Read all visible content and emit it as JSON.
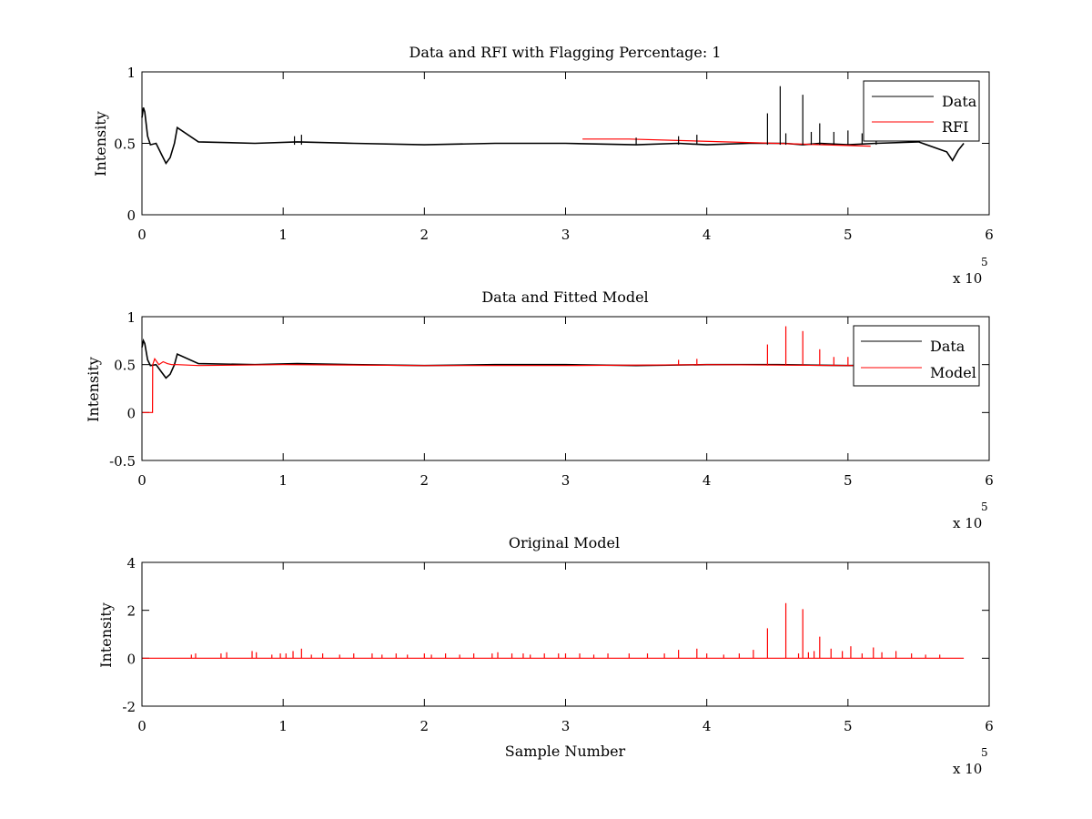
{
  "figure": {
    "background": "#ffffff"
  },
  "colors": {
    "data": "#000000",
    "red": "#ff0000",
    "axis": "#000000"
  },
  "chart_data": [
    {
      "type": "line",
      "title": "Data and RFI with Flagging Percentage: 1",
      "xlabel": "",
      "ylabel": "Intensity",
      "xlim": [
        0,
        600000
      ],
      "ylim": [
        0,
        1
      ],
      "x_ticks": [
        0,
        100000,
        200000,
        300000,
        400000,
        500000,
        600000
      ],
      "x_tick_labels": [
        "0",
        "1",
        "2",
        "3",
        "4",
        "5",
        "6"
      ],
      "y_ticks": [
        0,
        0.5,
        1
      ],
      "y_tick_labels": [
        "0",
        "0.5",
        "1"
      ],
      "x_multiplier": "x 10",
      "x_multiplier_exp": "5",
      "grid": false,
      "legend": {
        "placement": "top-right",
        "entries": [
          "Data",
          "RFI"
        ]
      },
      "series": [
        {
          "name": "Data",
          "color": "#000000",
          "x": [
            0,
            1000,
            2000,
            4000,
            6000,
            10000,
            14000,
            17000,
            20000,
            23000,
            25000,
            40000,
            80000,
            110000,
            150000,
            200000,
            250000,
            300000,
            350000,
            380000,
            400000,
            430000,
            443000,
            455000,
            468000,
            480000,
            500000,
            520000,
            550000,
            570000,
            574000,
            578000,
            582000
          ],
          "y": [
            0.68,
            0.75,
            0.72,
            0.55,
            0.49,
            0.5,
            0.42,
            0.36,
            0.4,
            0.5,
            0.61,
            0.51,
            0.5,
            0.51,
            0.5,
            0.49,
            0.5,
            0.5,
            0.49,
            0.5,
            0.49,
            0.5,
            0.5,
            0.5,
            0.49,
            0.5,
            0.49,
            0.5,
            0.51,
            0.44,
            0.38,
            0.45,
            0.5
          ]
        },
        {
          "name": "RFI",
          "color": "#ff0000",
          "x": [
            312000,
            322000,
            335000,
            345000,
            516000
          ],
          "y": [
            0.53,
            0.53,
            0.53,
            0.53,
            0.48
          ]
        }
      ],
      "spikes": {
        "x": [
          108000,
          113000,
          350000,
          380000,
          393000,
          443000,
          452000,
          456000,
          468000,
          474000,
          480000,
          490000,
          500000,
          510000,
          520000
        ],
        "y": [
          0.55,
          0.56,
          0.54,
          0.55,
          0.56,
          0.71,
          0.9,
          0.57,
          0.84,
          0.58,
          0.64,
          0.58,
          0.59,
          0.57,
          0.58
        ]
      }
    },
    {
      "type": "line",
      "title": "Data and Fitted Model",
      "xlabel": "",
      "ylabel": "Intensity",
      "xlim": [
        0,
        600000
      ],
      "ylim": [
        -0.5,
        1
      ],
      "x_ticks": [
        0,
        100000,
        200000,
        300000,
        400000,
        500000,
        600000
      ],
      "x_tick_labels": [
        "0",
        "1",
        "2",
        "3",
        "4",
        "5",
        "6"
      ],
      "y_ticks": [
        -0.5,
        0,
        0.5,
        1
      ],
      "y_tick_labels": [
        "-0.5",
        "0",
        "0.5",
        "1"
      ],
      "x_multiplier": "x 10",
      "x_multiplier_exp": "5",
      "grid": false,
      "legend": {
        "placement": "top-right",
        "entries": [
          "Data",
          "Model"
        ]
      },
      "series": [
        {
          "name": "Data",
          "color": "#000000",
          "x": [
            0,
            1000,
            2000,
            4000,
            6000,
            10000,
            14000,
            17000,
            20000,
            23000,
            25000,
            40000,
            80000,
            110000,
            150000,
            200000,
            250000,
            300000,
            350000,
            400000,
            450000,
            500000,
            550000,
            582000
          ],
          "y": [
            0.68,
            0.75,
            0.72,
            0.55,
            0.49,
            0.5,
            0.42,
            0.36,
            0.4,
            0.5,
            0.61,
            0.51,
            0.5,
            0.51,
            0.5,
            0.49,
            0.5,
            0.5,
            0.49,
            0.5,
            0.5,
            0.49,
            0.5,
            0.5
          ]
        },
        {
          "name": "Model",
          "color": "#ff0000",
          "x": [
            0,
            7500,
            7600,
            9000,
            12000,
            15000,
            18000,
            21000,
            25000,
            40000,
            100000,
            200000,
            300000,
            400000,
            500000,
            582000
          ],
          "y": [
            0,
            0,
            0.5,
            0.56,
            0.5,
            0.53,
            0.51,
            0.5,
            0.5,
            0.49,
            0.5,
            0.49,
            0.49,
            0.5,
            0.49,
            0.5
          ],
          "spikes": {
            "x": [
              443000,
              456000,
              468000,
              480000,
              490000,
              500000,
              380000,
              393000
            ],
            "y": [
              0.71,
              0.9,
              0.85,
              0.66,
              0.58,
              0.58,
              0.55,
              0.56
            ]
          }
        }
      ]
    },
    {
      "type": "line",
      "title": "Original Model",
      "xlabel": "Sample Number",
      "ylabel": "Intensity",
      "xlim": [
        0,
        600000
      ],
      "ylim": [
        -2,
        4
      ],
      "x_ticks": [
        0,
        100000,
        200000,
        300000,
        400000,
        500000,
        600000
      ],
      "x_tick_labels": [
        "0",
        "1",
        "2",
        "3",
        "4",
        "5",
        "6"
      ],
      "y_ticks": [
        -2,
        0,
        2,
        4
      ],
      "y_tick_labels": [
        "-2",
        "0",
        "2",
        "4"
      ],
      "x_multiplier": "x 10",
      "x_multiplier_exp": "5",
      "grid": false,
      "series": [
        {
          "color": "#ff0000",
          "x": [
            0,
            582000
          ],
          "y": [
            0,
            0
          ],
          "spikes": {
            "x": [
              35000,
              38000,
              56000,
              60000,
              78000,
              81000,
              92000,
              98000,
              102000,
              107000,
              113000,
              120000,
              128000,
              140000,
              150000,
              163000,
              170000,
              180000,
              188000,
              200000,
              205000,
              215000,
              225000,
              235000,
              248000,
              252000,
              262000,
              270000,
              275000,
              285000,
              295000,
              300000,
              310000,
              320000,
              330000,
              345000,
              358000,
              370000,
              380000,
              393000,
              400000,
              412000,
              423000,
              433000,
              443000,
              456000,
              465000,
              468000,
              472000,
              476000,
              480000,
              488000,
              496000,
              502000,
              510000,
              518000,
              524000,
              534000,
              545000,
              555000,
              565000
            ],
            "y": [
              0.15,
              0.2,
              0.2,
              0.25,
              0.3,
              0.25,
              0.15,
              0.2,
              0.2,
              0.3,
              0.4,
              0.15,
              0.2,
              0.15,
              0.2,
              0.2,
              0.15,
              0.2,
              0.15,
              0.2,
              0.15,
              0.2,
              0.15,
              0.2,
              0.2,
              0.25,
              0.2,
              0.2,
              0.15,
              0.2,
              0.2,
              0.2,
              0.2,
              0.15,
              0.2,
              0.2,
              0.2,
              0.2,
              0.35,
              0.4,
              0.2,
              0.15,
              0.2,
              0.35,
              1.25,
              2.3,
              0.2,
              2.05,
              0.25,
              0.3,
              0.9,
              0.4,
              0.3,
              0.5,
              0.2,
              0.45,
              0.25,
              0.3,
              0.2,
              0.15,
              0.15
            ]
          }
        }
      ]
    }
  ]
}
